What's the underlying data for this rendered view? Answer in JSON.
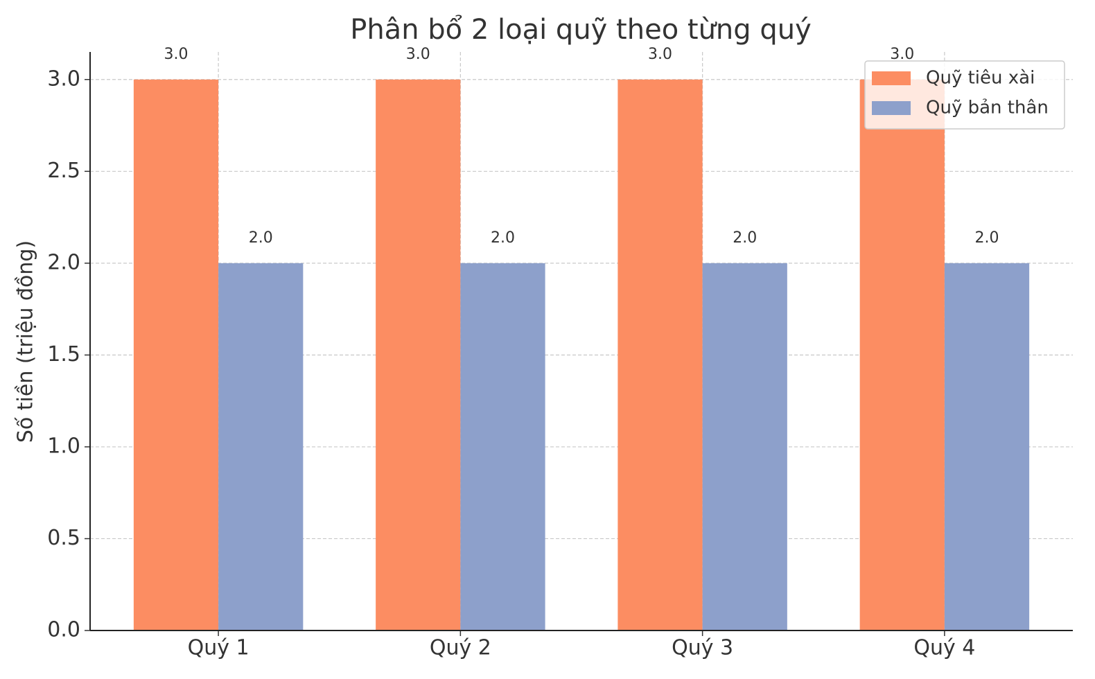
{
  "chart_data": {
    "type": "bar",
    "title": "Phân bổ 2 loại quỹ theo từng quý",
    "y_label": "Số tiền (triệu đồng)",
    "categories": [
      "Quý 1",
      "Quý 2",
      "Quý 3",
      "Quý 4"
    ],
    "series": [
      {
        "name": "Quỹ tiêu xài",
        "color": "#fc8d62",
        "values": [
          3,
          3,
          3,
          3
        ],
        "value_labels": [
          "3.0",
          "3.0",
          "3.0",
          "3.0"
        ]
      },
      {
        "name": "Quỹ bản thân",
        "color": "#8da0cb",
        "values": [
          2,
          2,
          2,
          2
        ],
        "value_labels": [
          "2.0",
          "2.0",
          "2.0",
          "2.0"
        ]
      }
    ],
    "ylim": [
      0,
      3.15
    ],
    "yticks": [
      {
        "value": 0,
        "label": "0.0"
      },
      0.5,
      {
        "value": 1,
        "label": "1.0"
      },
      1.5,
      {
        "value": 2,
        "label": "2.0"
      },
      2.5,
      {
        "value": 3,
        "label": "3.0"
      }
    ],
    "grid": true,
    "legend": "upper right"
  }
}
